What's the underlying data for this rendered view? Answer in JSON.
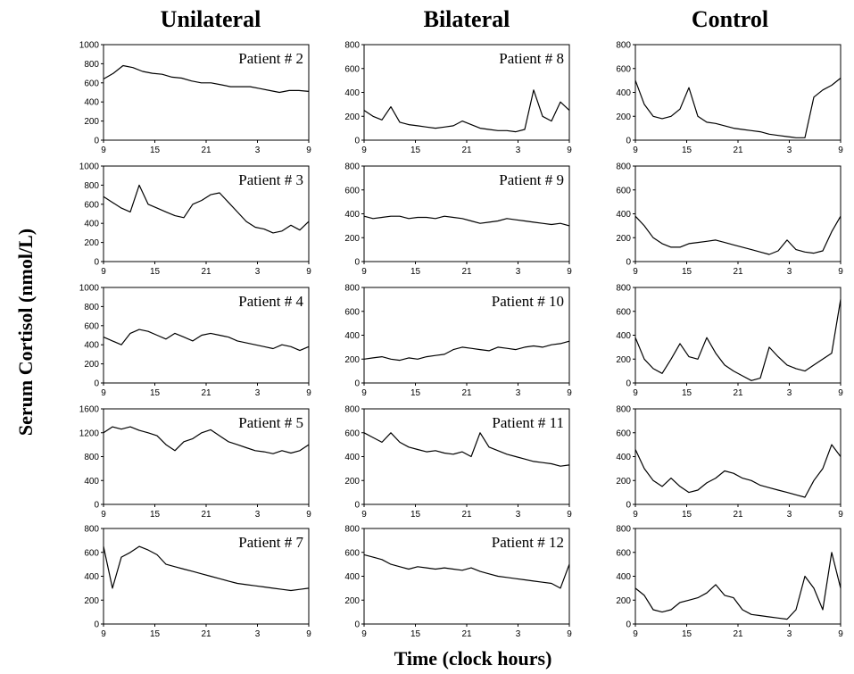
{
  "columns": [
    "Unilateral",
    "Bilateral",
    "Control"
  ],
  "y_axis_label": "Serum Cortisol  (nmol/L)",
  "x_axis_label": "Time (clock hours)",
  "chart_data": {
    "type": "line",
    "x_ticks": [
      "9",
      "15",
      "21",
      "3",
      "9"
    ],
    "panels": [
      {
        "column": "Unilateral",
        "label": "Patient # 2",
        "ylim": [
          0,
          1000
        ],
        "y_ticks": [
          0,
          200,
          400,
          600,
          800,
          1000
        ],
        "values": [
          640,
          700,
          780,
          760,
          720,
          700,
          690,
          660,
          650,
          620,
          600,
          600,
          580,
          560,
          560,
          560,
          540,
          520,
          500,
          520,
          520,
          510
        ]
      },
      {
        "column": "Unilateral",
        "label": "Patient # 3",
        "ylim": [
          0,
          1000
        ],
        "y_ticks": [
          0,
          200,
          400,
          600,
          800,
          1000
        ],
        "values": [
          680,
          620,
          560,
          520,
          800,
          600,
          560,
          520,
          480,
          460,
          600,
          640,
          700,
          720,
          620,
          520,
          420,
          360,
          340,
          300,
          320,
          380,
          330,
          420
        ]
      },
      {
        "column": "Unilateral",
        "label": "Patient # 4",
        "ylim": [
          0,
          1000
        ],
        "y_ticks": [
          0,
          200,
          400,
          600,
          800,
          1000
        ],
        "values": [
          480,
          440,
          400,
          520,
          560,
          540,
          500,
          460,
          520,
          480,
          440,
          500,
          520,
          500,
          480,
          440,
          420,
          400,
          380,
          360,
          400,
          380,
          340,
          380
        ]
      },
      {
        "column": "Unilateral",
        "label": "Patient # 5",
        "ylim": [
          0,
          1600
        ],
        "y_ticks": [
          0,
          400,
          800,
          1200,
          1600
        ],
        "values": [
          1200,
          1300,
          1260,
          1300,
          1240,
          1200,
          1150,
          1000,
          900,
          1050,
          1100,
          1200,
          1250,
          1150,
          1050,
          1000,
          950,
          900,
          880,
          850,
          900,
          860,
          900,
          1000
        ]
      },
      {
        "column": "Unilateral",
        "label": "Patient # 7",
        "ylim": [
          0,
          800
        ],
        "y_ticks": [
          0,
          200,
          400,
          600,
          800
        ],
        "values": [
          650,
          300,
          560,
          600,
          650,
          620,
          580,
          500,
          480,
          460,
          440,
          420,
          400,
          380,
          360,
          340,
          330,
          320,
          310,
          300,
          290,
          280,
          290,
          300
        ]
      },
      {
        "column": "Bilateral",
        "label": "Patient # 8",
        "ylim": [
          0,
          800
        ],
        "y_ticks": [
          0,
          200,
          400,
          600,
          800
        ],
        "values": [
          250,
          200,
          170,
          280,
          150,
          130,
          120,
          110,
          100,
          110,
          120,
          160,
          130,
          100,
          90,
          80,
          80,
          70,
          90,
          420,
          200,
          160,
          320,
          250
        ]
      },
      {
        "column": "Bilateral",
        "label": "Patient # 9",
        "ylim": [
          0,
          800
        ],
        "y_ticks": [
          0,
          200,
          400,
          600,
          800
        ],
        "values": [
          380,
          360,
          370,
          380,
          380,
          360,
          370,
          370,
          360,
          380,
          370,
          360,
          340,
          320,
          330,
          340,
          360,
          350,
          340,
          330,
          320,
          310,
          320,
          300
        ]
      },
      {
        "column": "Bilateral",
        "label": "Patient # 10",
        "ylim": [
          0,
          800
        ],
        "y_ticks": [
          0,
          200,
          400,
          600,
          800
        ],
        "values": [
          200,
          210,
          220,
          200,
          190,
          210,
          200,
          220,
          230,
          240,
          280,
          300,
          290,
          280,
          270,
          300,
          290,
          280,
          300,
          310,
          300,
          320,
          330,
          350
        ]
      },
      {
        "column": "Bilateral",
        "label": "Patient # 11",
        "ylim": [
          0,
          800
        ],
        "y_ticks": [
          0,
          200,
          400,
          600,
          800
        ],
        "values": [
          600,
          560,
          520,
          600,
          520,
          480,
          460,
          440,
          450,
          430,
          420,
          440,
          400,
          600,
          480,
          450,
          420,
          400,
          380,
          360,
          350,
          340,
          320,
          330
        ]
      },
      {
        "column": "Bilateral",
        "label": "Patient # 12",
        "ylim": [
          0,
          800
        ],
        "y_ticks": [
          0,
          200,
          400,
          600,
          800
        ],
        "values": [
          580,
          560,
          540,
          500,
          480,
          460,
          480,
          470,
          460,
          470,
          460,
          450,
          470,
          440,
          420,
          400,
          390,
          380,
          370,
          360,
          350,
          340,
          300,
          500
        ]
      },
      {
        "column": "Control",
        "label": "",
        "ylim": [
          0,
          800
        ],
        "y_ticks": [
          0,
          200,
          400,
          600,
          800
        ],
        "values": [
          500,
          300,
          200,
          180,
          200,
          260,
          440,
          200,
          150,
          140,
          120,
          100,
          90,
          80,
          70,
          50,
          40,
          30,
          20,
          20,
          360,
          420,
          460,
          520
        ]
      },
      {
        "column": "Control",
        "label": "",
        "ylim": [
          0,
          800
        ],
        "y_ticks": [
          0,
          200,
          400,
          600,
          800
        ],
        "values": [
          380,
          300,
          200,
          150,
          120,
          120,
          150,
          160,
          170,
          180,
          160,
          140,
          120,
          100,
          80,
          60,
          90,
          180,
          100,
          80,
          70,
          90,
          250,
          380
        ]
      },
      {
        "column": "Control",
        "label": "",
        "ylim": [
          0,
          800
        ],
        "y_ticks": [
          0,
          200,
          400,
          600,
          800
        ],
        "values": [
          380,
          200,
          120,
          80,
          200,
          330,
          220,
          200,
          380,
          250,
          150,
          100,
          60,
          20,
          40,
          300,
          220,
          150,
          120,
          100,
          150,
          200,
          250,
          700
        ]
      },
      {
        "column": "Control",
        "label": "",
        "ylim": [
          0,
          800
        ],
        "y_ticks": [
          0,
          200,
          400,
          600,
          800
        ],
        "values": [
          460,
          300,
          200,
          150,
          220,
          150,
          100,
          120,
          180,
          220,
          280,
          260,
          220,
          200,
          160,
          140,
          120,
          100,
          80,
          60,
          200,
          300,
          500,
          400
        ]
      },
      {
        "column": "Control",
        "label": "",
        "ylim": [
          0,
          800
        ],
        "y_ticks": [
          0,
          200,
          400,
          600,
          800
        ],
        "values": [
          300,
          240,
          120,
          100,
          120,
          180,
          200,
          220,
          260,
          330,
          240,
          220,
          120,
          80,
          70,
          60,
          50,
          40,
          120,
          400,
          300,
          120,
          600,
          300
        ]
      }
    ]
  }
}
